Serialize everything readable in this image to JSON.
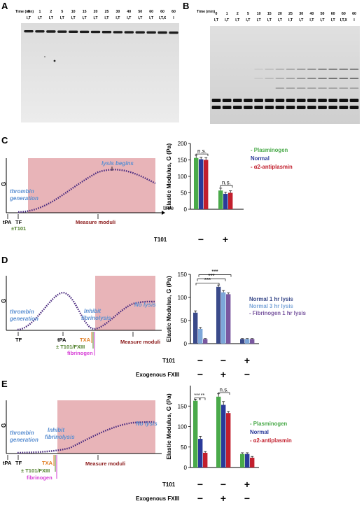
{
  "panels": {
    "A": {
      "label": "A"
    },
    "B": {
      "label": "B"
    },
    "C": {
      "label": "C"
    },
    "D": {
      "label": "D"
    },
    "E": {
      "label": "E"
    }
  },
  "gels": {
    "time_label": "Time (min)",
    "times": [
      "0",
      "1",
      "2",
      "5",
      "10",
      "15",
      "20",
      "25",
      "30",
      "40",
      "50",
      "60",
      "60",
      "60"
    ],
    "conds": [
      "I,T",
      "I,T",
      "I,T",
      "I,T",
      "I,T",
      "I,T",
      "I,T",
      "I,T",
      "I,T",
      "I,T",
      "I,T",
      "I,T",
      "I,T,X",
      "I"
    ]
  },
  "schematic": {
    "y_axis": "G",
    "x_axis": "time",
    "tpa": "tPA",
    "tf": "TF",
    "t101": "±T101",
    "t101_fxiii": "± T101/FXIII",
    "txa": "TXA",
    "fibrinogen": "fibrinogen",
    "thrombin_1": "thrombin",
    "thrombin_2": "generation",
    "lysis_begins": "lysis begins",
    "inhibit_1": "Inhibit",
    "inhibit_2": "fibrinolysis",
    "no_lysis": "No lysis",
    "measure": "Measure moduli",
    "colors": {
      "shade": "#e8b4b8",
      "curve": "#4b2b7f",
      "blue": "#5b8fd1",
      "txa": "#e07b1f",
      "t101": "#4f7f2a",
      "fib": "#d63bd6",
      "measure": "#8b1a1a"
    }
  },
  "chart_data": [
    {
      "panel": "C",
      "type": "bar",
      "ylabel": "Elastic Modulus, G (Pa)",
      "ylim": [
        0,
        200
      ],
      "yticks": [
        "0",
        "50",
        "100",
        "150",
        "200"
      ],
      "categories": [
        "−",
        "+"
      ],
      "category_label": "T101",
      "series": [
        {
          "name": "- Plasminogen",
          "color": "#4aaa4a",
          "values": [
            156,
            57
          ],
          "err": [
            9,
            7
          ]
        },
        {
          "name": "Normal",
          "color": "#2a3a9a",
          "values": [
            152,
            47
          ],
          "err": [
            6,
            5
          ]
        },
        {
          "name": "- α2-antiplasmin",
          "color": "#c21f2d",
          "values": [
            150,
            50
          ],
          "err": [
            7,
            6
          ]
        }
      ],
      "annotations": [
        "n.s.",
        "n.s."
      ]
    },
    {
      "panel": "D",
      "type": "bar",
      "ylabel": "Elastic Modulus, G (Pa)",
      "ylim": [
        0,
        150
      ],
      "yticks": [
        "0",
        "50",
        "100",
        "150"
      ],
      "rows": [
        {
          "label": "T101",
          "values": [
            "−",
            "−",
            "+"
          ]
        },
        {
          "label": "Exogenous FXIII",
          "values": [
            "−",
            "+",
            "−"
          ]
        }
      ],
      "series": [
        {
          "name": "Normal 1 hr lysis",
          "color": "#3a4a8a",
          "values": [
            67,
            123,
            10
          ],
          "err": [
            4,
            4,
            1
          ]
        },
        {
          "name": "Normal 3 hr lysis",
          "color": "#7da7d9",
          "values": [
            32,
            111,
            10
          ],
          "err": [
            3,
            4,
            1
          ]
        },
        {
          "name": "- Fibrinogen 1 hr lysis",
          "color": "#7a58a0",
          "values": [
            10,
            107,
            10
          ],
          "err": [
            1,
            3,
            1
          ]
        }
      ],
      "annotations": [
        "***",
        "***",
        "***"
      ]
    },
    {
      "panel": "E",
      "type": "bar",
      "ylabel": "Elastic Modulus, G (Pa)",
      "ylim": [
        0,
        200
      ],
      "yticks": [
        "0",
        "50",
        "100",
        "150"
      ],
      "rows": [
        {
          "label": "T101",
          "values": [
            "−",
            "−",
            "+"
          ]
        },
        {
          "label": "Exogenous FXIII",
          "values": [
            "−",
            "+",
            "−"
          ]
        }
      ],
      "series": [
        {
          "name": "- Plasminogen",
          "color": "#4aaa4a",
          "values": [
            163,
            173,
            33
          ],
          "err": [
            4,
            7,
            3
          ]
        },
        {
          "name": "Normal",
          "color": "#2a3a9a",
          "values": [
            70,
            153,
            33
          ],
          "err": [
            6,
            8,
            3
          ]
        },
        {
          "name": "- α2-antiplasmin",
          "color": "#c21f2d",
          "values": [
            36,
            133,
            24
          ],
          "err": [
            3,
            4,
            3
          ]
        }
      ],
      "annotations": [
        "***",
        "**",
        "n.s."
      ]
    }
  ]
}
